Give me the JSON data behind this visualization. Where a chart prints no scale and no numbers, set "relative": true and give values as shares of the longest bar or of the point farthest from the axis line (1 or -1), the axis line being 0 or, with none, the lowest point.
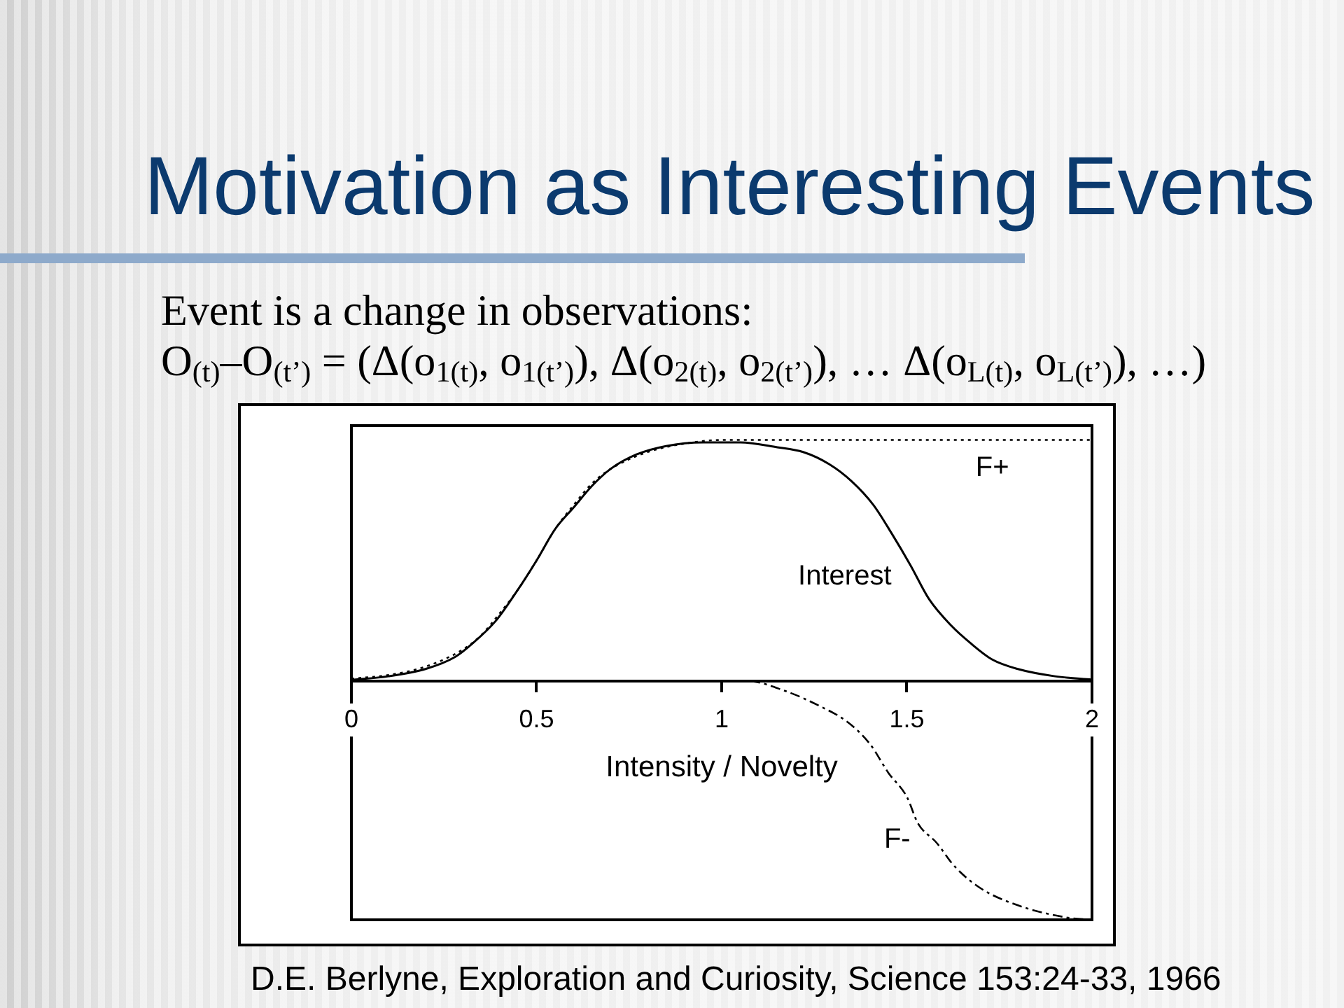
{
  "chart_data": {
    "type": "line",
    "title": "Motivation as Interesting Events",
    "subtitle": "Event is a change in observations:",
    "annotations": [
      "O$_{(t)}$–O$_{(t’)}$ = (Δ(o$_{1(t)}$, o$_{1(t’)}$), Δ(o$_{2(t)}$, o$_{2(t’)}$), … Δ(o$_{L(t)}$, o$_{L(t’)}$), …)",
      "D.E. Berlyne, Exploration and Curiosity, Science 153:24-33, 1966"
    ],
    "xlabel": "Intensity / Novelty",
    "relative": true,
    "xlim": [
      0,
      2
    ],
    "xticks": [
      0,
      0.5,
      1,
      1.5,
      2
    ],
    "grid": false,
    "legend": false,
    "marker": "none",
    "series": [
      {
        "name": "F+",
        "color": "#000000",
        "line_style": "dotted",
        "x": [
          0,
          0.1,
          0.2,
          0.3,
          0.35,
          0.4,
          0.45,
          0.5,
          0.55,
          0.6,
          0.65,
          0.7,
          0.8,
          0.9,
          1,
          1.25,
          1.5,
          1.75,
          2
        ],
        "values": [
          0.01,
          0.025,
          0.06,
          0.13,
          0.19,
          0.28,
          0.38,
          0.5,
          0.63,
          0.73,
          0.82,
          0.88,
          0.95,
          0.985,
          1,
          1,
          1,
          1,
          1
        ]
      },
      {
        "name": "Interest",
        "color": "#000000",
        "line_style": "solid",
        "x": [
          0,
          0.1,
          0.2,
          0.28,
          0.33,
          0.39,
          0.45,
          0.5,
          0.55,
          0.6,
          0.65,
          0.7,
          0.77,
          0.85,
          0.95,
          1.05,
          1.15,
          1.22,
          1.29,
          1.35,
          1.41,
          1.46,
          1.51,
          1.56,
          1.62,
          1.67,
          1.73,
          1.8,
          1.9,
          2
        ],
        "values": [
          0.005,
          0.02,
          0.05,
          0.1,
          0.16,
          0.25,
          0.38,
          0.5,
          0.63,
          0.72,
          0.81,
          0.88,
          0.94,
          0.975,
          0.99,
          0.99,
          0.97,
          0.95,
          0.9,
          0.83,
          0.73,
          0.61,
          0.48,
          0.34,
          0.23,
          0.16,
          0.09,
          0.05,
          0.02,
          0.006
        ]
      },
      {
        "name": "F-",
        "color": "#000000",
        "line_style": "dashed",
        "x": [
          0,
          0.5,
          1,
          1.07,
          1.17,
          1.26,
          1.34,
          1.4,
          1.45,
          1.5,
          1.53,
          1.58,
          1.63,
          1.7,
          1.8,
          1.93,
          2
        ],
        "values": [
          0,
          0,
          0,
          0,
          -0.04,
          -0.1,
          -0.17,
          -0.26,
          -0.38,
          -0.48,
          -0.59,
          -0.67,
          -0.77,
          -0.86,
          -0.93,
          -0.98,
          -0.99
        ]
      }
    ]
  }
}
